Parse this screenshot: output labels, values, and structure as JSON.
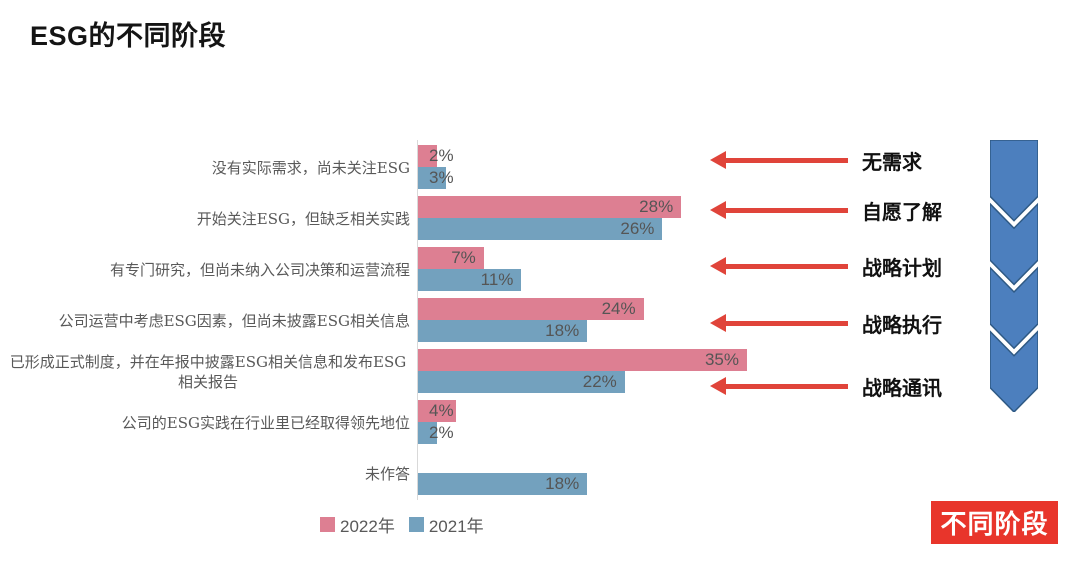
{
  "title": "ESG的不同阶段",
  "chart_data": {
    "type": "bar",
    "orientation": "horizontal",
    "title": "ESG的不同阶段",
    "categories": [
      "没有实际需求，尚未关注ESG",
      "开始关注ESG，但缺乏相关实践",
      "有专门研究，但尚未纳入公司决策和运营流程",
      "公司运营中考虑ESG因素，但尚未披露ESG相关信息",
      "已形成正式制度，并在年报中披露ESG相关信息和发布ESG相关报告",
      "公司的ESG实践在行业里已经取得领先地位",
      "未作答"
    ],
    "series": [
      {
        "name": "2022年",
        "color": "#DD7F92",
        "values": [
          2,
          28,
          7,
          24,
          35,
          4,
          null
        ]
      },
      {
        "name": "2021年",
        "color": "#73A1BE",
        "values": [
          3,
          26,
          11,
          18,
          22,
          2,
          18
        ]
      }
    ],
    "value_suffix": "%",
    "value_label_color": "#555555",
    "xlim": [
      0,
      40
    ],
    "grid": false,
    "legend_position": "bottom"
  },
  "stages": {
    "arrow_color": "#E0443A",
    "items": [
      {
        "label": "无需求"
      },
      {
        "label": "自愿了解"
      },
      {
        "label": "战略计划"
      },
      {
        "label": "战略执行"
      },
      {
        "label": "战略通讯"
      }
    ]
  },
  "chevron": {
    "fill": "#4C7FBE",
    "stroke": "#2E5984"
  },
  "banner": {
    "label": "不同阶段",
    "bg": "#E8352B",
    "text_color": "#FFFFFF"
  }
}
